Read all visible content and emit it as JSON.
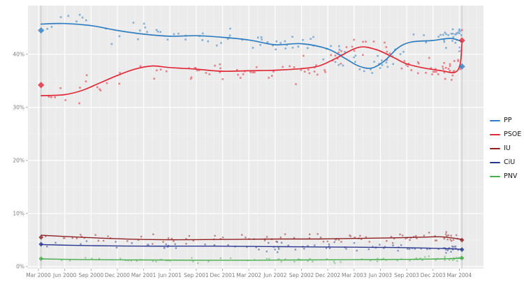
{
  "chart_data": {
    "type": "scatter",
    "title": "",
    "x_axis": {
      "tick_labels": [
        "Mar 2000",
        "Jun 2000",
        "Sep 2000",
        "Dec 2000",
        "Mar 2001",
        "Jun 2001",
        "Sep 2001",
        "Dec 2001",
        "Mar 2002",
        "Jun 2002",
        "Sep 2002",
        "Dec 2002",
        "Mar 2003",
        "Jun 2003",
        "Sep 2003",
        "Dec 2003",
        "Mar 2004"
      ],
      "tick_months": [
        0,
        3,
        6,
        9,
        12,
        15,
        18,
        21,
        24,
        27,
        30,
        33,
        36,
        39,
        42,
        45,
        48
      ]
    },
    "y_axis": {
      "tick_labels": [
        "0%",
        "10%",
        "20%",
        "30%",
        "40%"
      ],
      "tick_values": [
        0,
        10,
        20,
        30,
        40
      ],
      "minor_values": [
        5,
        15,
        25,
        35,
        45
      ],
      "range": [
        -0.5,
        49.5
      ]
    },
    "plot_style": {
      "background": "#ebebeb",
      "grid_color": "#ffffff",
      "tick_color": "#999999",
      "label_color": "#7d7d7d",
      "legend_text_color": "#141414"
    },
    "election_lines": {
      "months": [
        0.3,
        48.3
      ],
      "color": "#c2c2c2"
    },
    "series": [
      {
        "name": "PP",
        "color": "#2f7ec1",
        "line_width": 1.7,
        "marker_size": 4.6,
        "scatter": {
          "n": 118,
          "jitter": 1.25,
          "seed": 7,
          "size": 2.6,
          "opacity": 0.55
        },
        "trend": [
          [
            0.3,
            45.7
          ],
          [
            3,
            45.8
          ],
          [
            6,
            45.4
          ],
          [
            9,
            44.5
          ],
          [
            12,
            43.8
          ],
          [
            15,
            43.4
          ],
          [
            18,
            43.5
          ],
          [
            21,
            43.2
          ],
          [
            24,
            42.7
          ],
          [
            27,
            41.8
          ],
          [
            30,
            42.0
          ],
          [
            33,
            41.0
          ],
          [
            35,
            39.2
          ],
          [
            36.5,
            37.8
          ],
          [
            38,
            37.4
          ],
          [
            39.5,
            38.8
          ],
          [
            41,
            41.2
          ],
          [
            42.5,
            42.3
          ],
          [
            45,
            42.6
          ],
          [
            47,
            43.0
          ],
          [
            48.3,
            42.4
          ]
        ],
        "elections": [
          [
            0.3,
            44.5
          ],
          [
            48.3,
            37.7
          ]
        ]
      },
      {
        "name": "PSOE",
        "color": "#e02a38",
        "line_width": 1.7,
        "marker_size": 4.6,
        "scatter": {
          "n": 120,
          "jitter": 1.25,
          "seed": 13,
          "size": 2.6,
          "opacity": 0.55
        },
        "trend": [
          [
            0.3,
            32.2
          ],
          [
            3,
            32.4
          ],
          [
            5,
            33.2
          ],
          [
            7,
            34.6
          ],
          [
            9,
            36.0
          ],
          [
            11,
            37.2
          ],
          [
            13,
            37.8
          ],
          [
            15,
            37.5
          ],
          [
            18,
            37.2
          ],
          [
            21,
            36.8
          ],
          [
            24,
            36.9
          ],
          [
            27,
            37.0
          ],
          [
            30,
            37.3
          ],
          [
            32,
            37.8
          ],
          [
            34,
            39.3
          ],
          [
            36.5,
            41.3
          ],
          [
            38.5,
            40.9
          ],
          [
            40.5,
            39.4
          ],
          [
            42,
            38.2
          ],
          [
            44,
            37.4
          ],
          [
            46,
            36.9
          ],
          [
            47.5,
            36.6
          ],
          [
            48.1,
            38.2
          ],
          [
            48.3,
            42.0
          ]
        ],
        "elections": [
          [
            0.3,
            34.2
          ],
          [
            48.3,
            42.6
          ]
        ]
      },
      {
        "name": "IU",
        "color": "#8e2023",
        "line_width": 1.4,
        "marker_size": 3.4,
        "scatter": {
          "n": 92,
          "jitter": 0.5,
          "seed": 29,
          "size": 2.4,
          "opacity": 0.5
        },
        "trend": [
          [
            0.3,
            5.9
          ],
          [
            4,
            5.6
          ],
          [
            8,
            5.3
          ],
          [
            12,
            5.1
          ],
          [
            16,
            5.05
          ],
          [
            20,
            5.1
          ],
          [
            24,
            5.15
          ],
          [
            28,
            5.2
          ],
          [
            32,
            5.2
          ],
          [
            36,
            5.3
          ],
          [
            40,
            5.4
          ],
          [
            44,
            5.55
          ],
          [
            46,
            5.6
          ],
          [
            48,
            5.2
          ],
          [
            48.3,
            5.1
          ]
        ],
        "elections": [
          [
            0.3,
            5.5
          ],
          [
            48.3,
            5.0
          ]
        ]
      },
      {
        "name": "CiU",
        "color": "#27368f",
        "line_width": 1.4,
        "marker_size": 3.4,
        "scatter": {
          "n": 82,
          "jitter": 0.45,
          "seed": 41,
          "size": 2.4,
          "opacity": 0.5
        },
        "trend": [
          [
            0.3,
            4.15
          ],
          [
            4,
            4.0
          ],
          [
            8,
            3.9
          ],
          [
            12,
            3.85
          ],
          [
            16,
            3.85
          ],
          [
            20,
            3.85
          ],
          [
            24,
            3.8
          ],
          [
            28,
            3.75
          ],
          [
            32,
            3.7
          ],
          [
            36,
            3.65
          ],
          [
            40,
            3.6
          ],
          [
            44,
            3.5
          ],
          [
            47,
            3.35
          ],
          [
            48.3,
            3.25
          ]
        ],
        "elections": [
          [
            0.3,
            4.2
          ],
          [
            48.3,
            3.2
          ]
        ]
      },
      {
        "name": "PNV",
        "color": "#45ad49",
        "line_width": 1.4,
        "marker_size": 3.4,
        "scatter": {
          "n": 74,
          "jitter": 0.3,
          "seed": 53,
          "size": 2.2,
          "opacity": 0.5
        },
        "trend": [
          [
            0.3,
            1.45
          ],
          [
            6,
            1.3
          ],
          [
            12,
            1.25
          ],
          [
            18,
            1.2
          ],
          [
            24,
            1.2
          ],
          [
            30,
            1.25
          ],
          [
            36,
            1.3
          ],
          [
            42,
            1.35
          ],
          [
            46,
            1.45
          ],
          [
            48.3,
            1.55
          ]
        ],
        "elections": [
          [
            0.3,
            1.5
          ],
          [
            48.3,
            1.6
          ]
        ]
      }
    ],
    "legend": {
      "position": "right"
    }
  }
}
